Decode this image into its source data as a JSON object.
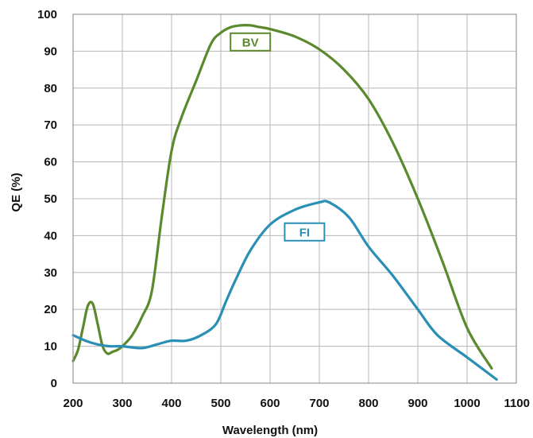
{
  "chart_data": {
    "type": "line",
    "title": "",
    "xlabel": "Wavelength (nm)",
    "ylabel": "QE (%)",
    "xlim": [
      200,
      1100
    ],
    "ylim": [
      0,
      100
    ],
    "x_ticks": [
      "200",
      "300",
      "400",
      "500",
      "600",
      "700",
      "800",
      "900",
      "1000",
      "1100"
    ],
    "y_ticks": [
      "0",
      "10",
      "20",
      "30",
      "40",
      "50",
      "60",
      "70",
      "80",
      "90",
      "100"
    ],
    "grid": true,
    "series": [
      {
        "name": "BV",
        "color": "#5b8a2e",
        "label_at": [
          560,
          92.5
        ],
        "x": [
          200,
          210,
          220,
          230,
          240,
          250,
          260,
          270,
          280,
          290,
          300,
          320,
          340,
          360,
          380,
          400,
          420,
          450,
          480,
          500,
          520,
          540,
          560,
          580,
          600,
          650,
          700,
          750,
          800,
          850,
          900,
          950,
          1000,
          1050
        ],
        "y": [
          6,
          9,
          15,
          21,
          21.5,
          16,
          10,
          8,
          8.5,
          9,
          10,
          13,
          18,
          25,
          45,
          63,
          72,
          82,
          92,
          95,
          96.5,
          97,
          97,
          96.5,
          96,
          94,
          90.5,
          85,
          77,
          65,
          50,
          33,
          15,
          4
        ]
      },
      {
        "name": "FI",
        "color": "#2a8fb5",
        "label_at": [
          670,
          41
        ],
        "x": [
          200,
          225,
          250,
          275,
          300,
          340,
          370,
          400,
          430,
          460,
          490,
          510,
          530,
          560,
          600,
          650,
          700,
          720,
          760,
          800,
          850,
          900,
          940,
          1000,
          1060
        ],
        "y": [
          13,
          11.5,
          10.5,
          10,
          10,
          9.5,
          10.5,
          11.5,
          11.5,
          13,
          16,
          22,
          28,
          36,
          43,
          47,
          49,
          49,
          45,
          37,
          29,
          20,
          13,
          7,
          1
        ]
      }
    ]
  }
}
